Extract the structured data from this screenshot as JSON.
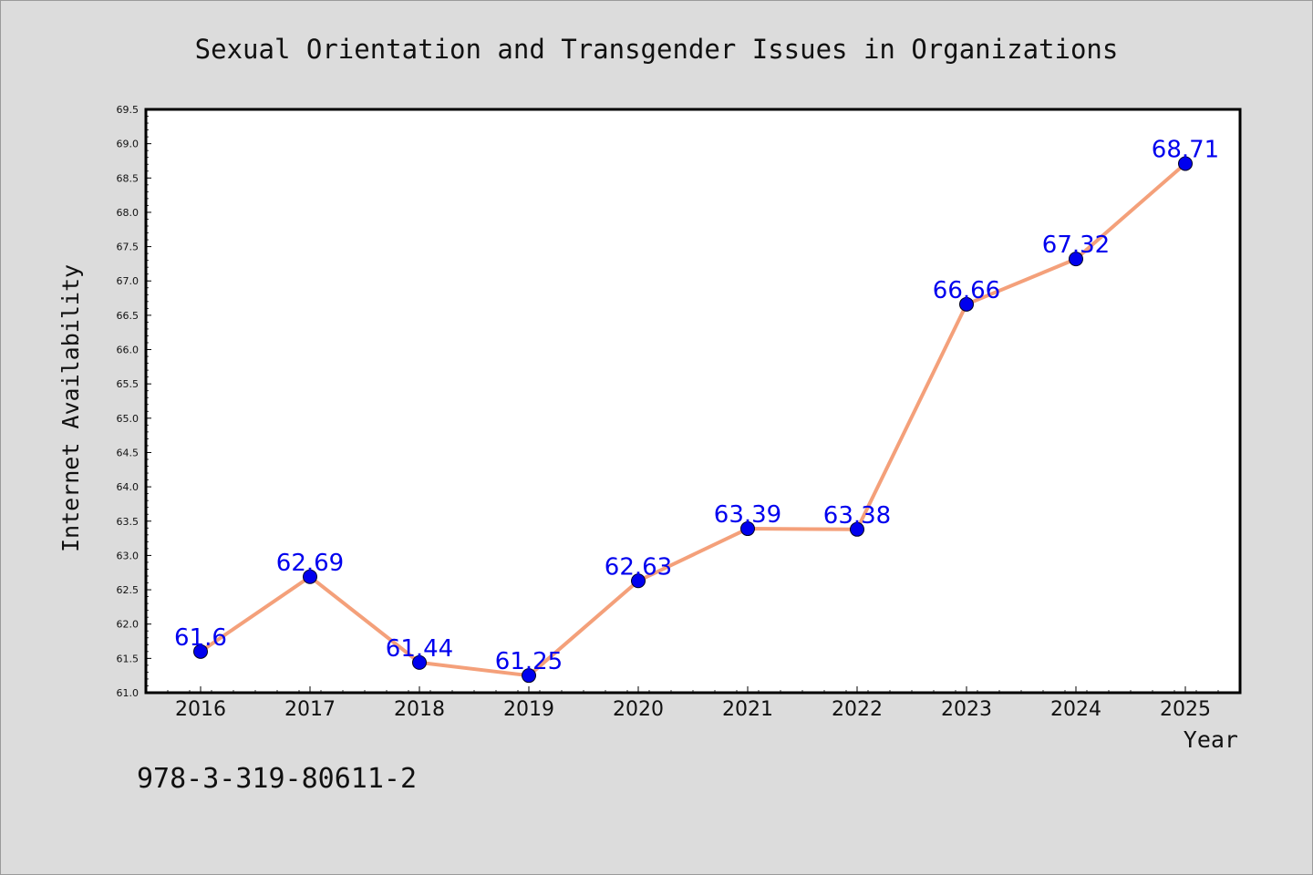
{
  "chart_data": {
    "type": "line",
    "title": "Sexual Orientation and Transgender Issues in Organizations",
    "xlabel": "Year",
    "ylabel": "Internet Availability",
    "categories": [
      "2016",
      "2017",
      "2018",
      "2019",
      "2020",
      "2021",
      "2022",
      "2023",
      "2024",
      "2025"
    ],
    "series": [
      {
        "values": [
          61.6,
          62.69,
          61.44,
          61.25,
          62.63,
          63.39,
          63.38,
          66.66,
          67.32,
          68.71
        ],
        "labels": [
          "61.6",
          "62.69",
          "61.44",
          "61.25",
          "62.63",
          "63.39",
          "63.38",
          "66.66",
          "67.32",
          "68.71"
        ],
        "line_color": "#f4a07a",
        "marker_color": "#0000ee",
        "label_color": "#0000ee"
      }
    ],
    "ylim": [
      61.0,
      69.5
    ],
    "yticks": [
      "61.0",
      "61.5",
      "62.0",
      "62.5",
      "63.0",
      "63.5",
      "64.0",
      "64.5",
      "65.0",
      "65.5",
      "66.0",
      "66.5",
      "67.0",
      "67.5",
      "68.0",
      "68.5",
      "69.0",
      "69.5"
    ],
    "grid": false,
    "legend": "none"
  },
  "footer_text": "978-3-319-80611-2",
  "colors": {
    "background": "#dcdcdc",
    "plot_background": "#ffffff",
    "axis": "#000000",
    "text": "#111111"
  }
}
